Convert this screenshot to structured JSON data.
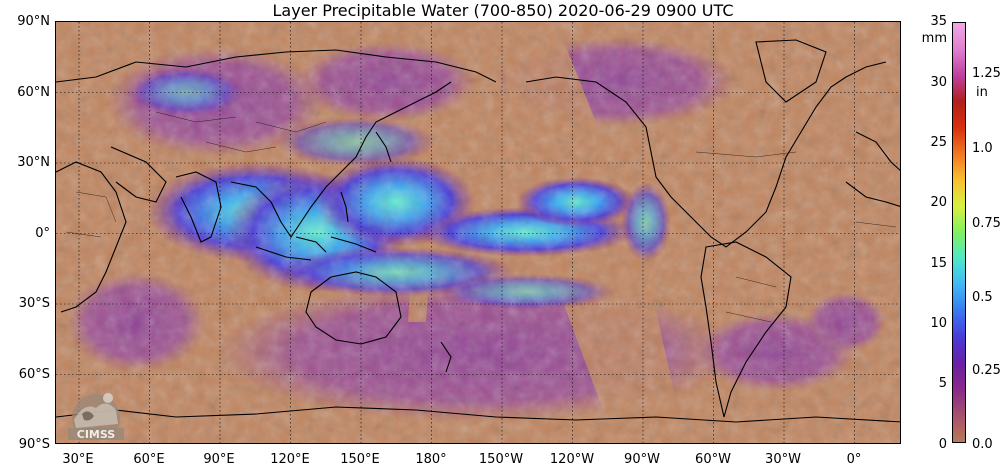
{
  "title": "Layer Precipitable Water (700-850)  2020-06-29 0900 UTC",
  "lat_labels": [
    "90°N",
    "60°N",
    "30°N",
    "0°",
    "30°S",
    "60°S",
    "90°S"
  ],
  "lon_labels": [
    "30°E",
    "60°E",
    "90°E",
    "120°E",
    "150°E",
    "180°",
    "150°W",
    "120°W",
    "90°W",
    "60°W",
    "30°W",
    "0°"
  ],
  "colorbar": {
    "unit_mm": "mm",
    "unit_in": "in",
    "mm_ticks": [
      "35",
      "30",
      "25",
      "20",
      "15",
      "10",
      "5",
      "0"
    ],
    "in_ticks": [
      "1.25",
      "1.0",
      "0.75",
      "0.5",
      "0.25",
      "0.0"
    ],
    "range_mm": [
      0,
      35
    ],
    "colors": [
      "#b87a5a",
      "#a8506e",
      "#8a2a8a",
      "#6a1fa6",
      "#4a3ad8",
      "#3a78f0",
      "#40b8f8",
      "#50e8c8",
      "#80f060",
      "#d8f040",
      "#f8c030",
      "#f07820",
      "#d83010",
      "#b0201a",
      "#c040a0",
      "#e080d0",
      "#f0a8e8"
    ]
  },
  "logo_text": "CIMSS",
  "colors": {
    "background": "#c0845e",
    "land_outline": "#000000",
    "grid": "#000000"
  }
}
